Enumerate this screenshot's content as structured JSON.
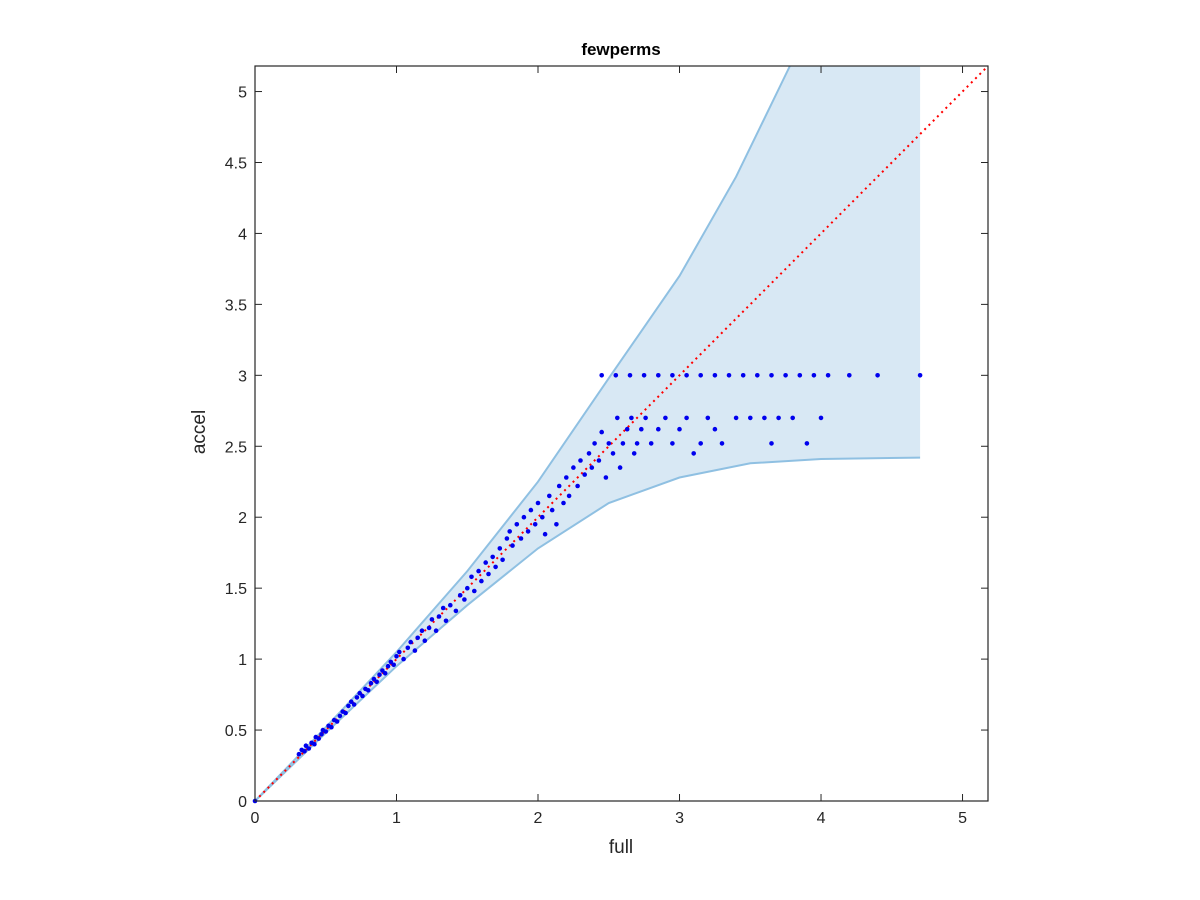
{
  "chart_data": {
    "type": "scatter",
    "title": "fewperms",
    "xlabel": "full",
    "ylabel": "accel",
    "xlim": [
      0,
      5.18
    ],
    "ylim": [
      0,
      5.18
    ],
    "xticks": [
      0,
      1,
      2,
      3,
      4,
      5
    ],
    "xtick_labels": [
      "0",
      "1",
      "2",
      "3",
      "4",
      "5"
    ],
    "yticks": [
      0,
      0.5,
      1,
      1.5,
      2,
      2.5,
      3,
      3.5,
      4,
      4.5,
      5
    ],
    "ytick_labels": [
      "0",
      "0.5",
      "1",
      "1.5",
      "2",
      "2.5",
      "3",
      "3.5",
      "4",
      "4.5",
      "5"
    ],
    "grid": false,
    "box": true,
    "colors": {
      "points": "#0000ee",
      "band_fill": "#d8e8f4",
      "band_edge": "#8fc0e2",
      "reference_line": "#ff0000",
      "axes": "#262626"
    },
    "band": {
      "upper": [
        [
          0,
          0
        ],
        [
          0.5,
          0.52
        ],
        [
          1,
          1.05
        ],
        [
          1.5,
          1.62
        ],
        [
          2,
          2.25
        ],
        [
          2.5,
          2.98
        ],
        [
          3,
          3.7
        ],
        [
          3.4,
          4.4
        ],
        [
          3.78,
          5.18
        ],
        [
          4.7,
          5.18
        ]
      ],
      "lower": [
        [
          0,
          0
        ],
        [
          0.5,
          0.48
        ],
        [
          1,
          0.95
        ],
        [
          1.5,
          1.38
        ],
        [
          1.8,
          1.62
        ],
        [
          2,
          1.78
        ],
        [
          2.5,
          2.1
        ],
        [
          3,
          2.28
        ],
        [
          3.5,
          2.38
        ],
        [
          4,
          2.41
        ],
        [
          4.7,
          2.42
        ]
      ]
    },
    "reference_line": {
      "from": [
        0,
        0
      ],
      "to": [
        5.18,
        5.18
      ],
      "style": "dotted"
    },
    "series": [
      {
        "points": [
          [
            0,
            0
          ],
          [
            0.31,
            0.33
          ],
          [
            0.33,
            0.36
          ],
          [
            0.35,
            0.35
          ],
          [
            0.36,
            0.39
          ],
          [
            0.38,
            0.37
          ],
          [
            0.4,
            0.41
          ],
          [
            0.42,
            0.4
          ],
          [
            0.43,
            0.45
          ],
          [
            0.45,
            0.44
          ],
          [
            0.47,
            0.47
          ],
          [
            0.48,
            0.5
          ],
          [
            0.5,
            0.49
          ],
          [
            0.52,
            0.53
          ],
          [
            0.54,
            0.52
          ],
          [
            0.56,
            0.57
          ],
          [
            0.58,
            0.56
          ],
          [
            0.6,
            0.6
          ],
          [
            0.62,
            0.63
          ],
          [
            0.64,
            0.62
          ],
          [
            0.66,
            0.67
          ],
          [
            0.68,
            0.7
          ],
          [
            0.7,
            0.68
          ],
          [
            0.72,
            0.73
          ],
          [
            0.74,
            0.76
          ],
          [
            0.76,
            0.74
          ],
          [
            0.78,
            0.79
          ],
          [
            0.8,
            0.78
          ],
          [
            0.82,
            0.83
          ],
          [
            0.84,
            0.86
          ],
          [
            0.86,
            0.84
          ],
          [
            0.88,
            0.89
          ],
          [
            0.9,
            0.92
          ],
          [
            0.92,
            0.9
          ],
          [
            0.94,
            0.95
          ],
          [
            0.96,
            0.98
          ],
          [
            0.98,
            0.96
          ],
          [
            1.0,
            1.02
          ],
          [
            1.02,
            1.05
          ],
          [
            1.05,
            1.0
          ],
          [
            1.08,
            1.08
          ],
          [
            1.1,
            1.12
          ],
          [
            1.13,
            1.06
          ],
          [
            1.15,
            1.15
          ],
          [
            1.18,
            1.2
          ],
          [
            1.2,
            1.13
          ],
          [
            1.23,
            1.22
          ],
          [
            1.25,
            1.28
          ],
          [
            1.28,
            1.2
          ],
          [
            1.3,
            1.3
          ],
          [
            1.33,
            1.36
          ],
          [
            1.35,
            1.27
          ],
          [
            1.38,
            1.38
          ],
          [
            1.42,
            1.34
          ],
          [
            1.45,
            1.45
          ],
          [
            1.48,
            1.42
          ],
          [
            1.5,
            1.5
          ],
          [
            1.53,
            1.58
          ],
          [
            1.55,
            1.48
          ],
          [
            1.58,
            1.62
          ],
          [
            1.6,
            1.55
          ],
          [
            1.63,
            1.68
          ],
          [
            1.65,
            1.6
          ],
          [
            1.68,
            1.72
          ],
          [
            1.7,
            1.65
          ],
          [
            1.73,
            1.78
          ],
          [
            1.75,
            1.7
          ],
          [
            1.78,
            1.85
          ],
          [
            1.8,
            1.9
          ],
          [
            1.82,
            1.8
          ],
          [
            1.85,
            1.95
          ],
          [
            1.88,
            1.85
          ],
          [
            1.9,
            2.0
          ],
          [
            1.93,
            1.9
          ],
          [
            1.95,
            2.05
          ],
          [
            1.98,
            1.95
          ],
          [
            2.0,
            2.1
          ],
          [
            2.03,
            2.0
          ],
          [
            2.05,
            1.88
          ],
          [
            2.08,
            2.15
          ],
          [
            2.1,
            2.05
          ],
          [
            2.13,
            1.95
          ],
          [
            2.15,
            2.22
          ],
          [
            2.18,
            2.1
          ],
          [
            2.2,
            2.28
          ],
          [
            2.22,
            2.15
          ],
          [
            2.25,
            2.35
          ],
          [
            2.28,
            2.22
          ],
          [
            2.3,
            2.4
          ],
          [
            2.33,
            2.3
          ],
          [
            2.36,
            2.45
          ],
          [
            2.38,
            2.35
          ],
          [
            2.4,
            2.52
          ],
          [
            2.43,
            2.4
          ],
          [
            2.45,
            2.6
          ],
          [
            2.48,
            2.28
          ],
          [
            2.5,
            2.52
          ],
          [
            2.53,
            2.45
          ],
          [
            2.56,
            2.7
          ],
          [
            2.58,
            2.35
          ],
          [
            2.6,
            2.52
          ],
          [
            2.63,
            2.62
          ],
          [
            2.66,
            2.7
          ],
          [
            2.68,
            2.45
          ],
          [
            2.7,
            2.52
          ],
          [
            2.73,
            2.62
          ],
          [
            2.76,
            2.7
          ],
          [
            2.8,
            2.52
          ],
          [
            2.85,
            2.62
          ],
          [
            2.9,
            2.7
          ],
          [
            2.95,
            2.52
          ],
          [
            3.0,
            2.62
          ],
          [
            3.05,
            2.7
          ],
          [
            3.1,
            2.45
          ],
          [
            3.15,
            2.52
          ],
          [
            3.2,
            2.7
          ],
          [
            3.25,
            2.62
          ],
          [
            3.3,
            2.52
          ],
          [
            3.4,
            2.7
          ],
          [
            3.5,
            2.7
          ],
          [
            3.6,
            2.7
          ],
          [
            3.65,
            2.52
          ],
          [
            3.7,
            2.7
          ],
          [
            3.8,
            2.7
          ],
          [
            3.9,
            2.52
          ],
          [
            4.0,
            2.7
          ],
          [
            2.45,
            3.0
          ],
          [
            2.55,
            3.0
          ],
          [
            2.65,
            3.0
          ],
          [
            2.75,
            3.0
          ],
          [
            2.85,
            3.0
          ],
          [
            2.95,
            3.0
          ],
          [
            3.05,
            3.0
          ],
          [
            3.15,
            3.0
          ],
          [
            3.25,
            3.0
          ],
          [
            3.35,
            3.0
          ],
          [
            3.45,
            3.0
          ],
          [
            3.55,
            3.0
          ],
          [
            3.65,
            3.0
          ],
          [
            3.75,
            3.0
          ],
          [
            3.85,
            3.0
          ],
          [
            3.95,
            3.0
          ],
          [
            4.05,
            3.0
          ],
          [
            4.2,
            3.0
          ],
          [
            4.4,
            3.0
          ],
          [
            4.7,
            3.0
          ]
        ]
      }
    ]
  }
}
